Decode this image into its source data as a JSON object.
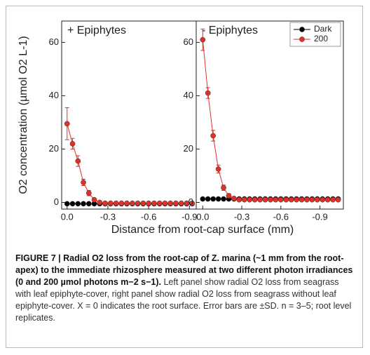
{
  "figure": {
    "ylabel": "O2 concentration (µmol O2 L-1)",
    "xlabel": "Distance from root-cap surface (mm)"
  },
  "chart_data": [
    {
      "type": "line",
      "title": "+ Epiphytes",
      "x": [
        0,
        -0.04,
        -0.08,
        -0.12,
        -0.16,
        -0.2,
        -0.24,
        -0.28,
        -0.32,
        -0.36,
        -0.4,
        -0.44,
        -0.48,
        -0.52,
        -0.56,
        -0.6,
        -0.64,
        -0.68,
        -0.72,
        -0.76,
        -0.8,
        -0.84,
        -0.88,
        -0.92
      ],
      "series": [
        {
          "color": "#000000",
          "values": [
            -0.5,
            -0.5,
            -0.5,
            -0.5,
            -0.5,
            -0.5,
            -0.5,
            -0.5,
            -0.5,
            -0.5,
            -0.5,
            -0.5,
            -0.5,
            -0.5,
            -0.5,
            -0.5,
            -0.5,
            -0.5,
            -0.5,
            -0.5,
            -0.5,
            -0.5,
            -0.5,
            -0.5
          ]
        },
        {
          "color": "#e0302a",
          "values": [
            29.5,
            22,
            15.5,
            7.5,
            3.5,
            1,
            0,
            -0.3,
            -0.3,
            -0.3,
            -0.3,
            -0.3,
            -0.3,
            -0.3,
            -0.3,
            -0.3,
            -0.3,
            -0.3,
            -0.3,
            -0.3,
            -0.3,
            -0.3,
            -0.3,
            -0.3
          ],
          "errors": [
            6,
            2,
            2,
            1.2,
            1,
            0.5,
            0.3,
            0.2,
            0.2,
            0.2,
            0.2,
            0.2,
            0.2,
            0.2,
            0.2,
            0.2,
            0.2,
            0.2,
            0.2,
            0.2,
            0.2,
            0.2,
            0.2,
            0.2
          ]
        }
      ],
      "xlim": [
        0.04,
        -0.95
      ],
      "ylim": [
        -2.5,
        68
      ],
      "xticks": [
        {
          "value": 0,
          "label": "0.0"
        },
        -0.3,
        -0.6,
        -0.9
      ],
      "yticks": [
        0,
        20,
        40,
        60
      ]
    },
    {
      "type": "line",
      "title": "- Epiphytes",
      "x": [
        0,
        -0.04,
        -0.08,
        -0.12,
        -0.16,
        -0.2,
        -0.24,
        -0.28,
        -0.32,
        -0.36,
        -0.4,
        -0.44,
        -0.48,
        -0.52,
        -0.56,
        -0.6,
        -0.64,
        -0.68,
        -0.72,
        -0.76,
        -0.8,
        -0.84,
        -0.88,
        -0.92,
        -0.96,
        -1,
        -1.04
      ],
      "series": [
        {
          "name": "Dark",
          "color": "#000000",
          "values": [
            1.3,
            1.3,
            1.3,
            1.3,
            1.3,
            1.3,
            1.3,
            1.3,
            1.3,
            1.3,
            1.3,
            1.3,
            1.3,
            1.3,
            1.3,
            1.3,
            1.3,
            1.3,
            1.3,
            1.3,
            1.3,
            1.3,
            1.3,
            1.3,
            1.3,
            1.3,
            1.3
          ]
        },
        {
          "name": "200",
          "color": "#e0302a",
          "values": [
            61,
            41,
            25,
            12.5,
            5.5,
            2.5,
            1.5,
            1,
            1,
            1,
            1,
            1,
            1,
            1,
            1,
            1,
            1,
            1,
            1,
            1,
            1,
            1,
            1,
            1,
            1,
            1,
            1
          ],
          "errors": [
            4,
            2,
            2,
            1.5,
            1,
            0.8,
            0.5,
            0.3,
            0.2,
            0.2,
            0.2,
            0.2,
            0.2,
            0.2,
            0.2,
            0.2,
            0.2,
            0.2,
            0.2,
            0.2,
            0.2,
            0.2,
            0.2,
            0.2,
            0.2,
            0.2,
            0.2
          ]
        }
      ],
      "xlim": [
        0.05,
        -1.08
      ],
      "ylim": [
        -2.5,
        68
      ],
      "xticks": [
        {
          "value": 0,
          "label": "0.0"
        },
        -0.3,
        -0.6,
        -0.9
      ],
      "yticks": [
        0,
        20,
        40,
        60
      ],
      "legend": "upper right"
    }
  ],
  "caption": {
    "bold": "FIGURE 7 | Radial O2 loss from the root-cap of Z. marina (~1 mm from the root-apex) to the immediate rhizosphere measured at two different photon irradiances (0 and 200 µmol photons m−2 s−1).",
    "text": "Left panel show radial O2 loss from seagrass with leaf epiphyte-cover, right panel show radial O2 loss from seagrass without leaf epiphyte-cover. X = 0 indicates the root surface. Error bars are ±SD. n = 3–5; root level replicates."
  }
}
